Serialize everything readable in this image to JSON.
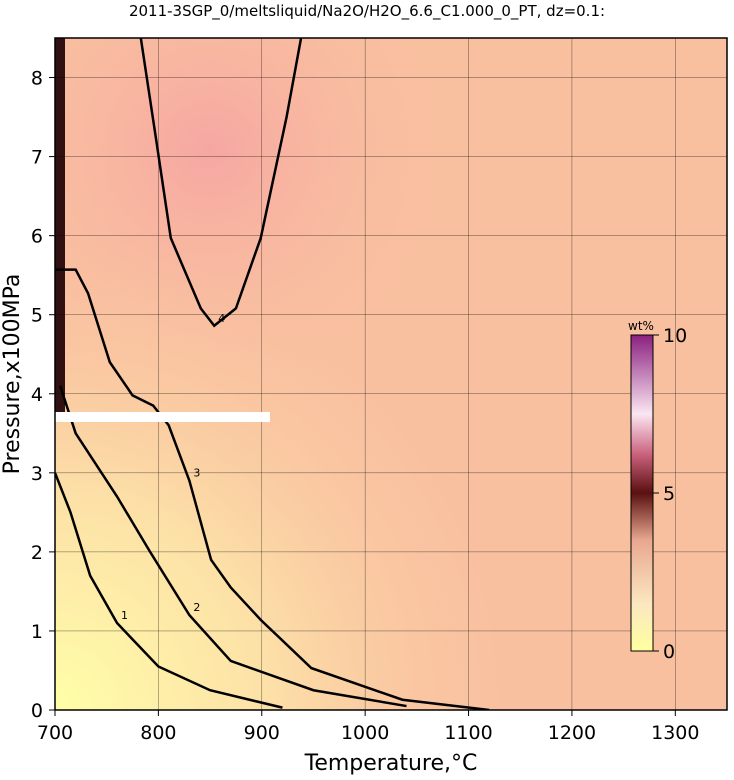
{
  "chart_data": {
    "type": "contour",
    "title": "2011-3SGP_0/meltsliquid/Na2O/H2O_6.6_C1.000_0_PT, dz=0.1:",
    "x_label": "Temperature,°C",
    "y_label": "Pressure,x100MPa",
    "xlim": [
      700,
      1350
    ],
    "ylim": [
      0,
      8.5
    ],
    "xticks": [
      700,
      800,
      900,
      1000,
      1100,
      1200,
      1300
    ],
    "yticks": [
      0,
      1,
      2,
      3,
      4,
      5,
      6,
      7,
      8
    ],
    "grid": true,
    "colorbar": {
      "label": "wt%",
      "lim": [
        0,
        10
      ],
      "ticks": [
        0,
        5,
        10
      ]
    },
    "contours": [
      {
        "level": 1,
        "x": [
          700,
          715,
          734,
          760,
          800,
          850,
          920
        ],
        "y": [
          3.0,
          2.5,
          1.7,
          1.1,
          0.55,
          0.25,
          0.03
        ]
      },
      {
        "level": 2,
        "x": [
          705,
          720,
          760,
          792,
          830,
          870,
          950,
          1040
        ],
        "y": [
          4.1,
          3.5,
          2.7,
          2.0,
          1.2,
          0.62,
          0.25,
          0.05
        ]
      },
      {
        "level": 3,
        "x": [
          700,
          720,
          732,
          753,
          775,
          795,
          810,
          830,
          851,
          870,
          899,
          948,
          1036,
          1120
        ],
        "y": [
          5.57,
          5.57,
          5.27,
          4.4,
          3.98,
          3.85,
          3.6,
          2.9,
          1.9,
          1.55,
          1.14,
          0.53,
          0.13,
          0.0
        ]
      },
      {
        "level": 4,
        "x": [
          783,
          798,
          812,
          841,
          854,
          875,
          899,
          924,
          938
        ],
        "y": [
          8.5,
          7.2,
          5.97,
          5.08,
          4.86,
          5.08,
          5.97,
          7.5,
          8.5
        ]
      }
    ]
  }
}
